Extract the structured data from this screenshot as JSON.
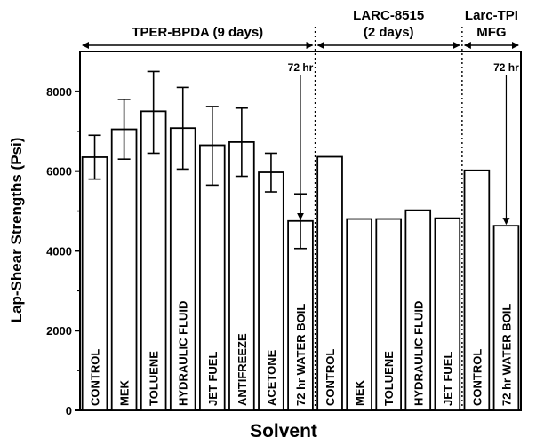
{
  "chart_data": {
    "type": "bar",
    "xlabel": "Solvent",
    "ylabel": "Lap-Shear Strengths (Psi)",
    "ylim": [
      0,
      9000
    ],
    "yticks": [
      0,
      2000,
      4000,
      6000,
      8000
    ],
    "groups": [
      {
        "name": "TPER-BPDA (9 days)",
        "name_lines": [
          "TPER-BPDA (9 days)"
        ],
        "bar_count": 8
      },
      {
        "name": "LARC-8515 (2 days)",
        "name_lines": [
          "LARC-8515",
          "(2 days)"
        ],
        "bar_count": 5
      },
      {
        "name": "Larc-TPI MFG",
        "name_lines": [
          "Larc-TPI",
          "MFG"
        ],
        "bar_count": 2
      }
    ],
    "bars": [
      {
        "category": "CONTROL",
        "value": 6350,
        "err_low": 5800,
        "err_high": 6900
      },
      {
        "category": "MEK",
        "value": 7050,
        "err_low": 6300,
        "err_high": 7800
      },
      {
        "category": "TOLUENE",
        "value": 7500,
        "err_low": 6450,
        "err_high": 8500
      },
      {
        "category": "HYDRAULIC FLUID",
        "value": 7080,
        "err_low": 6050,
        "err_high": 8100
      },
      {
        "category": "JET FUEL",
        "value": 6650,
        "err_low": 5650,
        "err_high": 7620
      },
      {
        "category": "ANTIFREEZE",
        "value": 6730,
        "err_low": 5870,
        "err_high": 7580
      },
      {
        "category": "ACETONE",
        "value": 5970,
        "err_low": 5480,
        "err_high": 6450
      },
      {
        "category": "72 hr WATER BOIL",
        "value": 4750,
        "err_low": 4060,
        "err_high": 5430
      },
      {
        "category": "CONTROL",
        "value": 6360
      },
      {
        "category": "MEK",
        "value": 4800
      },
      {
        "category": "TOLUENE",
        "value": 4800
      },
      {
        "category": "HYDRAULIC FLUID",
        "value": 5020
      },
      {
        "category": "JET FUEL",
        "value": 4820
      },
      {
        "category": "CONTROL",
        "value": 6020
      },
      {
        "category": "72 hr WATER BOIL",
        "value": 4630
      }
    ],
    "annotations": [
      {
        "text": "72 hr",
        "bar_index": 7
      },
      {
        "text": "72 hr",
        "bar_index": 14
      }
    ],
    "grid": false,
    "legend": "none"
  }
}
